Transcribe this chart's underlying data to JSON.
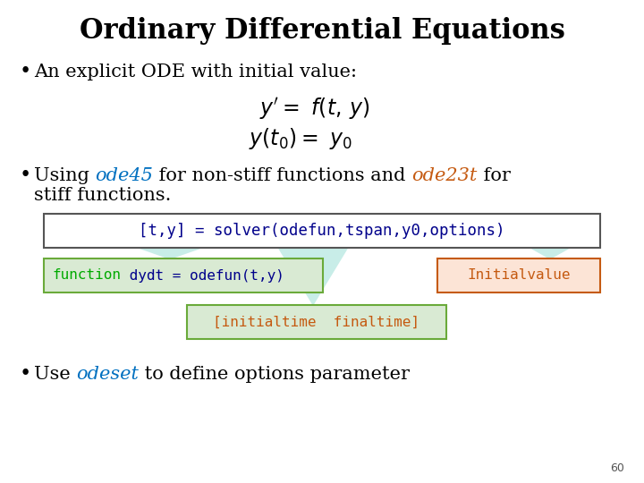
{
  "title": "Ordinary Differential Equations",
  "bg_color": "#ffffff",
  "title_color": "#000000",
  "bullet1": "An explicit ODE with initial value:",
  "bullet2_line2": "stiff functions.",
  "bullet2_parts": [
    {
      "text": "Using ",
      "color": "#000000",
      "style": "normal"
    },
    {
      "text": "ode45",
      "color": "#0070c0",
      "style": "italic"
    },
    {
      "text": " for non-stiff functions and ",
      "color": "#000000",
      "style": "normal"
    },
    {
      "text": "ode23t",
      "color": "#c55a11",
      "style": "italic"
    },
    {
      "text": " for",
      "color": "#000000",
      "style": "normal"
    }
  ],
  "code_box_text": "[t,y] = solver(odefun,tspan,y0,options)",
  "code_text_color": "#00008b",
  "code_box_bg": "#ffffff",
  "code_box_border": "#555555",
  "func_keyword": "function",
  "func_rest": " dydt = odefun(t,y)",
  "func_box_bg": "#d9ead3",
  "func_box_border": "#6aaa3a",
  "func_keyword_color": "#00aa00",
  "func_text_color": "#00008b",
  "init_box_text": "Initialvalue",
  "init_box_bg": "#fce4d6",
  "init_box_border": "#c55a11",
  "init_text_color": "#c55a11",
  "tspan_box_text": "[initialtime  finaltime]",
  "tspan_box_bg": "#d9ead3",
  "tspan_box_border": "#6aaa3a",
  "tspan_text_color": "#c55a11",
  "arrow_fill": "#c8ede8",
  "bullet3_parts": [
    {
      "text": "Use ",
      "color": "#000000",
      "style": "normal"
    },
    {
      "text": "odeset",
      "color": "#0070c0",
      "style": "italic"
    },
    {
      "text": " to define options parameter",
      "color": "#000000",
      "style": "normal"
    }
  ],
  "page_number": "60"
}
